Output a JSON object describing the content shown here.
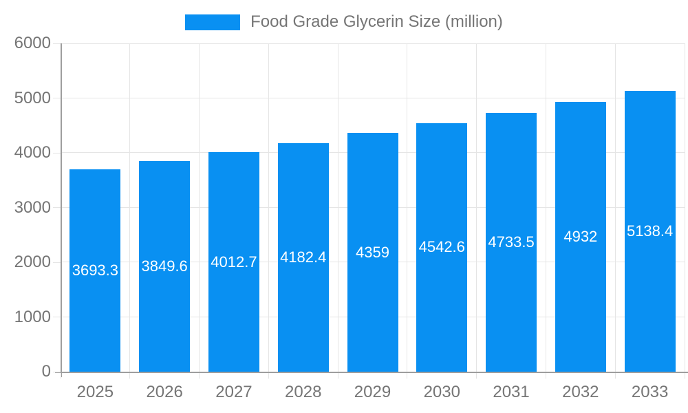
{
  "chart_data": {
    "type": "bar",
    "title": "Food Grade Glycerin Size (million)",
    "categories": [
      "2025",
      "2026",
      "2027",
      "2028",
      "2029",
      "2030",
      "2031",
      "2032",
      "2033"
    ],
    "values": [
      3693.3,
      3849.6,
      4012.7,
      4182.4,
      4359,
      4542.6,
      4733.5,
      4932,
      5138.4
    ],
    "value_labels": [
      "3693.3",
      "3849.6",
      "4012.7",
      "4182.4",
      "4359",
      "4542.6",
      "4733.5",
      "4932",
      "5138.4"
    ],
    "xlabel": "",
    "ylabel": "",
    "ylim": [
      0,
      6000
    ],
    "yticks": [
      0,
      1000,
      2000,
      3000,
      4000,
      5000,
      6000
    ],
    "grid": true,
    "legend_position": "top-center",
    "colors": {
      "bar": "#0990F2",
      "value_label": "#FFFFFF",
      "axis_text": "#757575",
      "grid": "#E5E5E5",
      "axis_line": "#9E9E9E"
    }
  }
}
